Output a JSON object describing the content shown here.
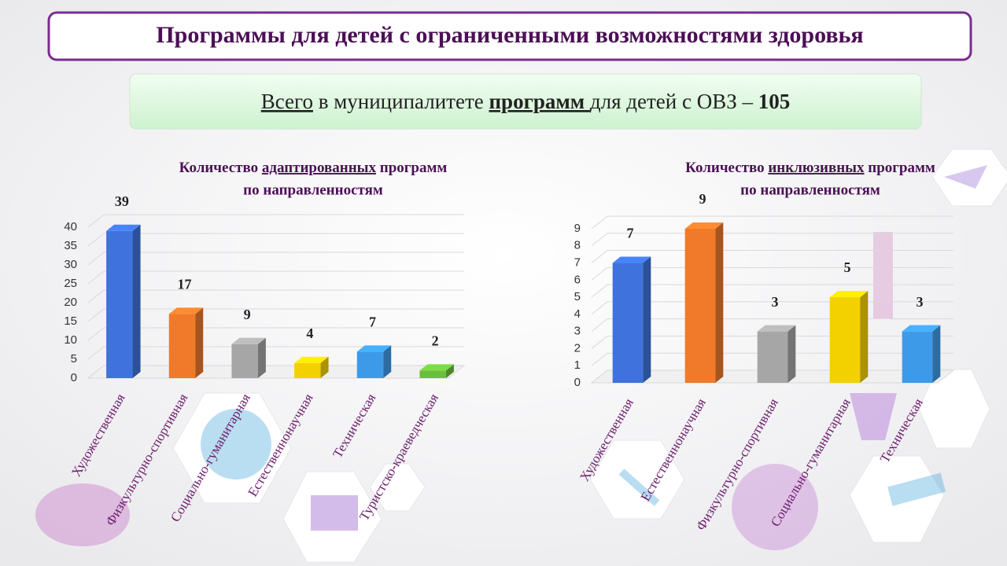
{
  "header": {
    "title": "Программы для детей с ограниченными возможностями здоровья",
    "subtitle_parts": [
      "Всего",
      " в муниципалитете ",
      "программ ",
      "для детей с ОВЗ – ",
      "105"
    ]
  },
  "chart_data": [
    {
      "type": "bar",
      "title_parts": [
        "Количество ",
        "адаптированных",
        " программ"
      ],
      "title_line2": "по направленностям",
      "categories": [
        "Художественная",
        "Физкультурно-спортивная",
        "Социально-гуманитарная",
        "Естественнонаучная",
        "Техническая",
        "Туристско-краеведческая"
      ],
      "values": [
        39,
        17,
        9,
        4,
        7,
        2
      ],
      "colors": [
        "#3f72dc",
        "#f07a2a",
        "#a6a6a6",
        "#f3d000",
        "#3d9ae8",
        "#6cbf3c"
      ],
      "ylim": [
        0,
        40
      ],
      "yticks": [
        0,
        5,
        10,
        15,
        20,
        25,
        30,
        35,
        40
      ],
      "grid": true
    },
    {
      "type": "bar",
      "title_parts": [
        "Количество ",
        "инклюзивных",
        " программ"
      ],
      "title_line2": "по направленностям",
      "categories": [
        "Художественная",
        "Естественнонаучная",
        "Физкультурно-спортивная",
        "Социально-гуманитарная",
        "Техническая"
      ],
      "values": [
        7,
        9,
        3,
        5,
        3
      ],
      "colors": [
        "#3f72dc",
        "#f07a2a",
        "#a6a6a6",
        "#f3d000",
        "#3d9ae8"
      ],
      "ylim": [
        0,
        9
      ],
      "yticks": [
        0,
        1,
        2,
        3,
        4,
        5,
        6,
        7,
        8,
        9
      ],
      "grid": true
    }
  ]
}
